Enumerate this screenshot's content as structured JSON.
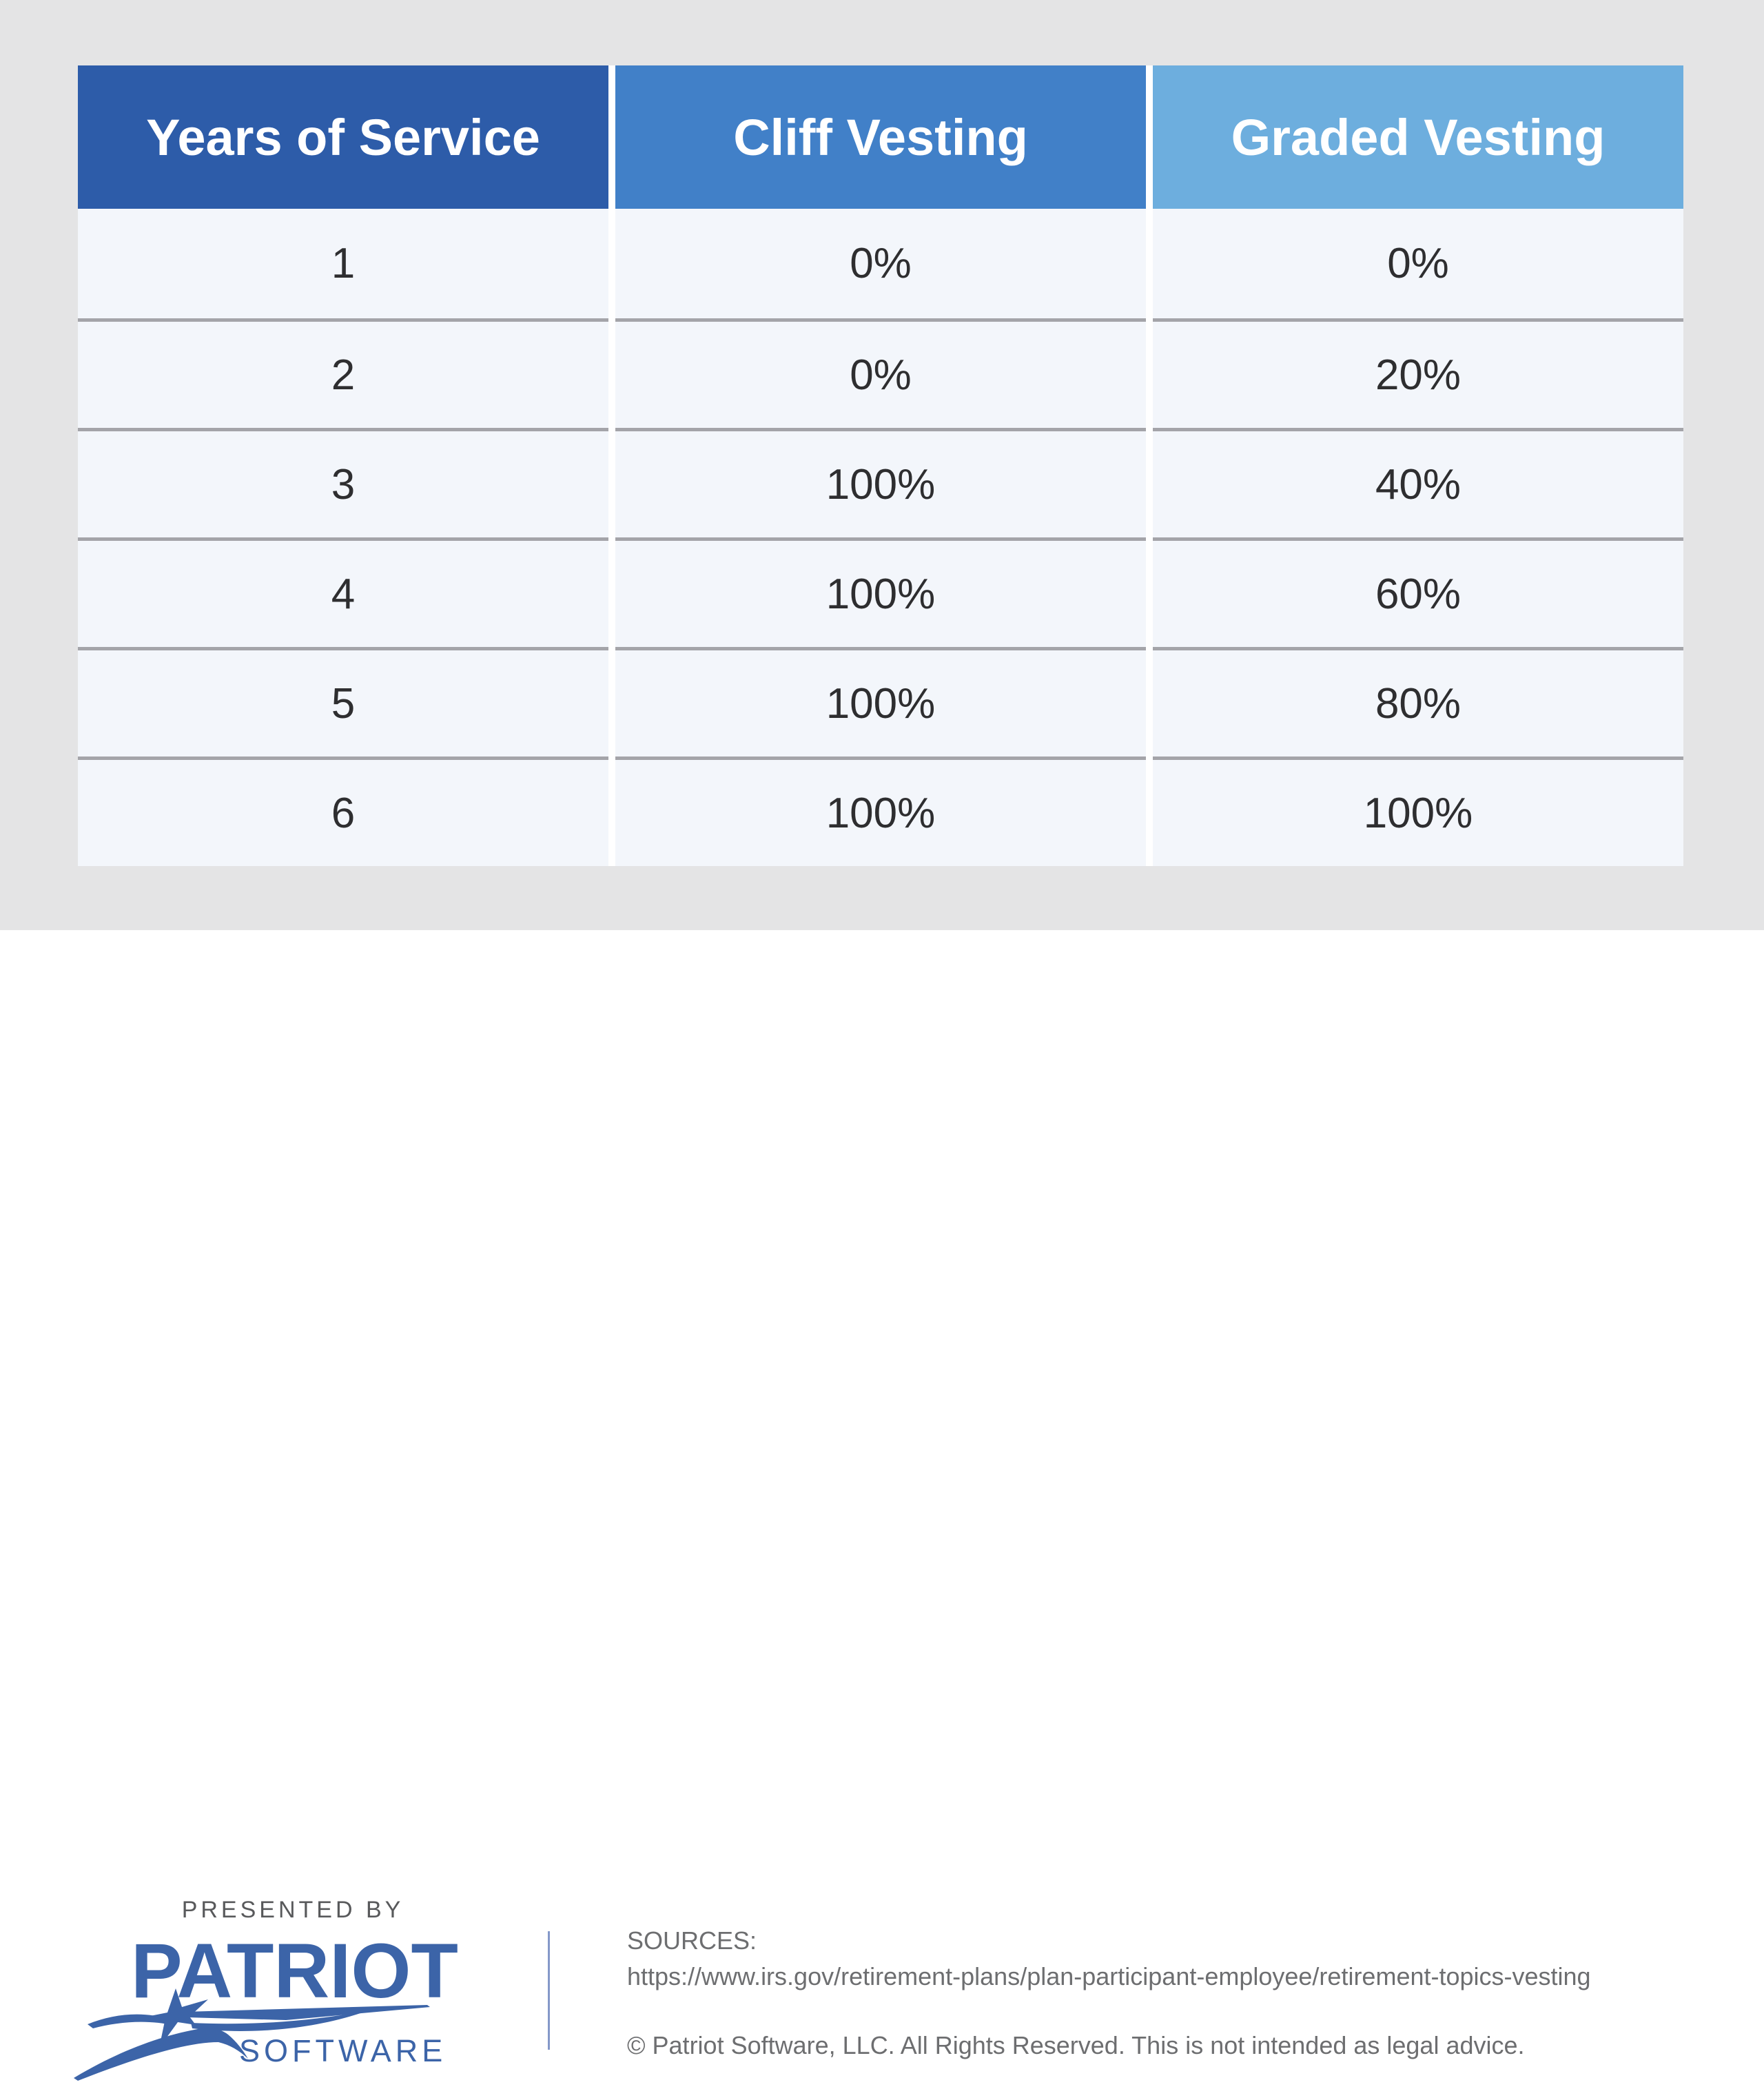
{
  "chart_data": {
    "type": "table",
    "columns": [
      "Years of Service",
      "Cliff Vesting",
      "Graded Vesting"
    ],
    "rows": [
      [
        "1",
        "0%",
        "0%"
      ],
      [
        "2",
        "0%",
        "20%"
      ],
      [
        "3",
        "100%",
        "40%"
      ],
      [
        "4",
        "100%",
        "60%"
      ],
      [
        "5",
        "100%",
        "80%"
      ],
      [
        "6",
        "100%",
        "100%"
      ]
    ]
  },
  "table": {
    "columns": [
      {
        "label": "Years of Service",
        "color": "#2d5ca9"
      },
      {
        "label": "Cliff Vesting",
        "color": "#4180c8"
      },
      {
        "label": "Graded Vesting",
        "color": "#6daede"
      }
    ],
    "rows": [
      [
        "1",
        "0%",
        "0%"
      ],
      [
        "2",
        "0%",
        "20%"
      ],
      [
        "3",
        "100%",
        "40%"
      ],
      [
        "4",
        "100%",
        "60%"
      ],
      [
        "5",
        "100%",
        "80%"
      ],
      [
        "6",
        "100%",
        "100%"
      ]
    ]
  },
  "footer": {
    "presented_by": "PRESENTED BY",
    "logo_name": "PATRIOT",
    "logo_sub": "SOFTWARE",
    "sources_label": "SOURCES:",
    "source_url": "https://www.irs.gov/retirement-plans/plan-participant-employee/retirement-topics-vesting",
    "copyright": "© Patriot Software, LLC. All Rights Reserved. This is not intended as legal advice."
  },
  "colors": {
    "page_top_background": "#e4e4e5",
    "footer_background": "#ffffff",
    "row_background": "#f3f6fb",
    "row_separator": "#a4a4a9",
    "cell_text": "#2e2e30",
    "header_text": "#ffffff",
    "logo_blue": "#3c64a8",
    "footer_text_gray": "#6d6e70"
  }
}
